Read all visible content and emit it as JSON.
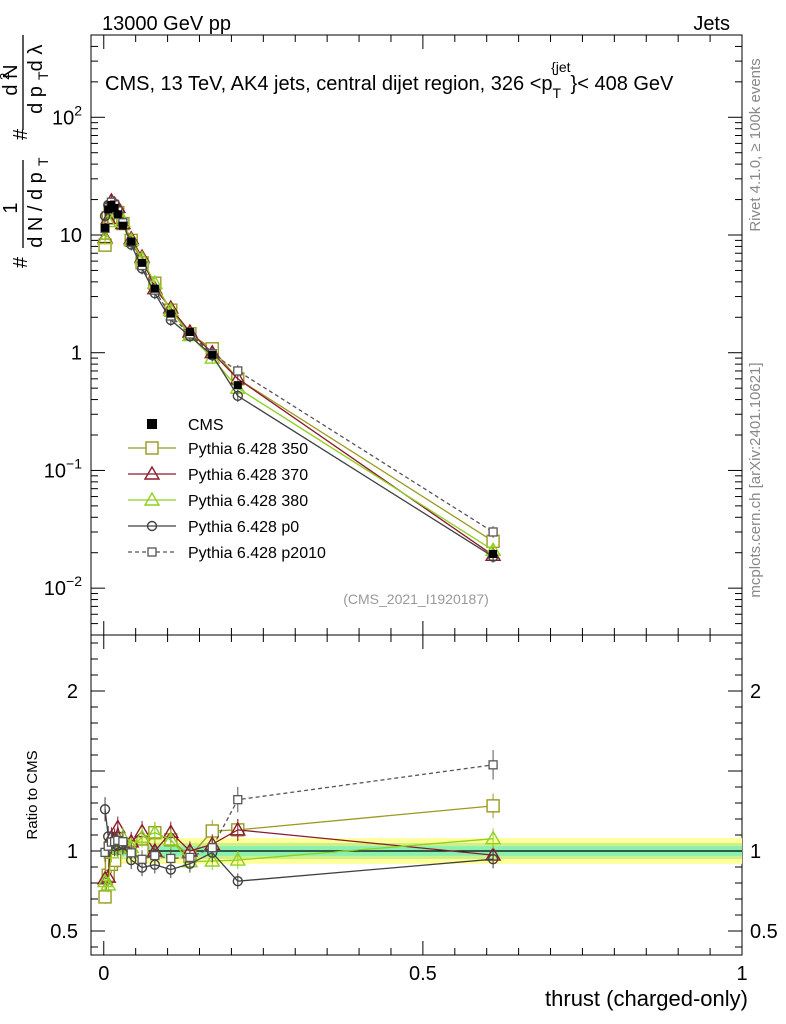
{
  "header": {
    "left": "13000 GeV pp",
    "right": "Jets"
  },
  "side_labels": {
    "rivet": "Rivet 4.1.0, ≥ 100k events",
    "mcplots": "mcplots.cern.ch [arXiv:2401.10621]"
  },
  "watermark": "(CMS_2021_I1920187)",
  "chart_data": {
    "type": "line",
    "title_parts": {
      "pre": "CMS, 13 TeV, AK4 jets, central dijet region, 326 <p",
      "sub": "T",
      "sup": "{jet",
      "post": "}< 408 GeV"
    },
    "ylabel_main": "1/N dN/dp_T d²N/(dp_T dλ)",
    "ylabel_ratio": "Ratio to CMS",
    "xlabel": "thrust (charged-only)",
    "xlim": [
      -0.02,
      1.0
    ],
    "ylim_main": [
      0.004,
      500
    ],
    "ylim_ratio": [
      0.35,
      2.35
    ],
    "x_ticks": [
      {
        "value": 0,
        "label": "0"
      },
      {
        "value": 0.5,
        "label": "0.5"
      },
      {
        "value": 1,
        "label": "1"
      }
    ],
    "y_ticks_main": [
      {
        "value": 100,
        "base": "10",
        "exp": "2"
      },
      {
        "value": 10,
        "base": "10",
        "exp": ""
      },
      {
        "value": 1,
        "base": "1",
        "exp": ""
      },
      {
        "value": 0.1,
        "base": "10",
        "exp": "−1"
      },
      {
        "value": 0.01,
        "base": "10",
        "exp": "−2"
      }
    ],
    "y_ticks_ratio": [
      {
        "value": 0.5,
        "label": "0.5"
      },
      {
        "value": 1,
        "label": "1"
      },
      {
        "value": 2,
        "label": "2"
      }
    ],
    "x": [
      0.002,
      0.007,
      0.012,
      0.017,
      0.022,
      0.03,
      0.043,
      0.06,
      0.08,
      0.105,
      0.135,
      0.17,
      0.21,
      0.61
    ],
    "cms": {
      "name": "CMS",
      "values": [
        11.5,
        16.5,
        18.0,
        17.0,
        15.0,
        12.0,
        8.8,
        5.8,
        3.5,
        2.15,
        1.5,
        0.96,
        0.53,
        0.0195
      ],
      "band_inner": 0.03,
      "band_mid": 0.05,
      "band_outer": 0.08
    },
    "series": [
      {
        "name": "Pythia 6.428 350",
        "color": "#9a9a20",
        "marker": "square",
        "dash": "",
        "values": [
          8.2,
          14.0,
          16.5,
          16.0,
          15.5,
          12.5,
          9.0,
          5.8,
          3.9,
          2.3,
          1.45,
          1.08,
          0.6,
          0.025
        ]
      },
      {
        "name": "Pythia 6.428 370",
        "color": "#8b1a2a",
        "marker": "triangle",
        "dash": "",
        "values": [
          9.5,
          13.8,
          19.5,
          18.3,
          17.2,
          12.5,
          9.3,
          6.5,
          3.5,
          2.4,
          1.5,
          1.0,
          0.6,
          0.019
        ]
      },
      {
        "name": "Pythia 6.428 380",
        "color": "#8fd020",
        "marker": "triangle",
        "dash": "",
        "values": [
          9.3,
          13.0,
          17.8,
          17.5,
          15.8,
          13.0,
          9.0,
          6.3,
          3.9,
          2.3,
          1.4,
          0.9,
          0.5,
          0.021
        ]
      },
      {
        "name": "Pythia 6.428 p0",
        "color": "#404040",
        "marker": "circle",
        "dash": "",
        "values": [
          14.5,
          18.0,
          18.8,
          17.5,
          15.5,
          12.5,
          8.3,
          5.2,
          3.2,
          1.9,
          1.38,
          0.95,
          0.43,
          0.0185
        ]
      },
      {
        "name": "Pythia 6.428 p2010",
        "color": "#555555",
        "marker": "open-square",
        "dash": "4,3",
        "values": [
          11.4,
          17.0,
          19.0,
          18.0,
          16.0,
          12.7,
          8.7,
          5.5,
          3.4,
          2.05,
          1.44,
          0.98,
          0.7,
          0.03
        ]
      }
    ]
  }
}
